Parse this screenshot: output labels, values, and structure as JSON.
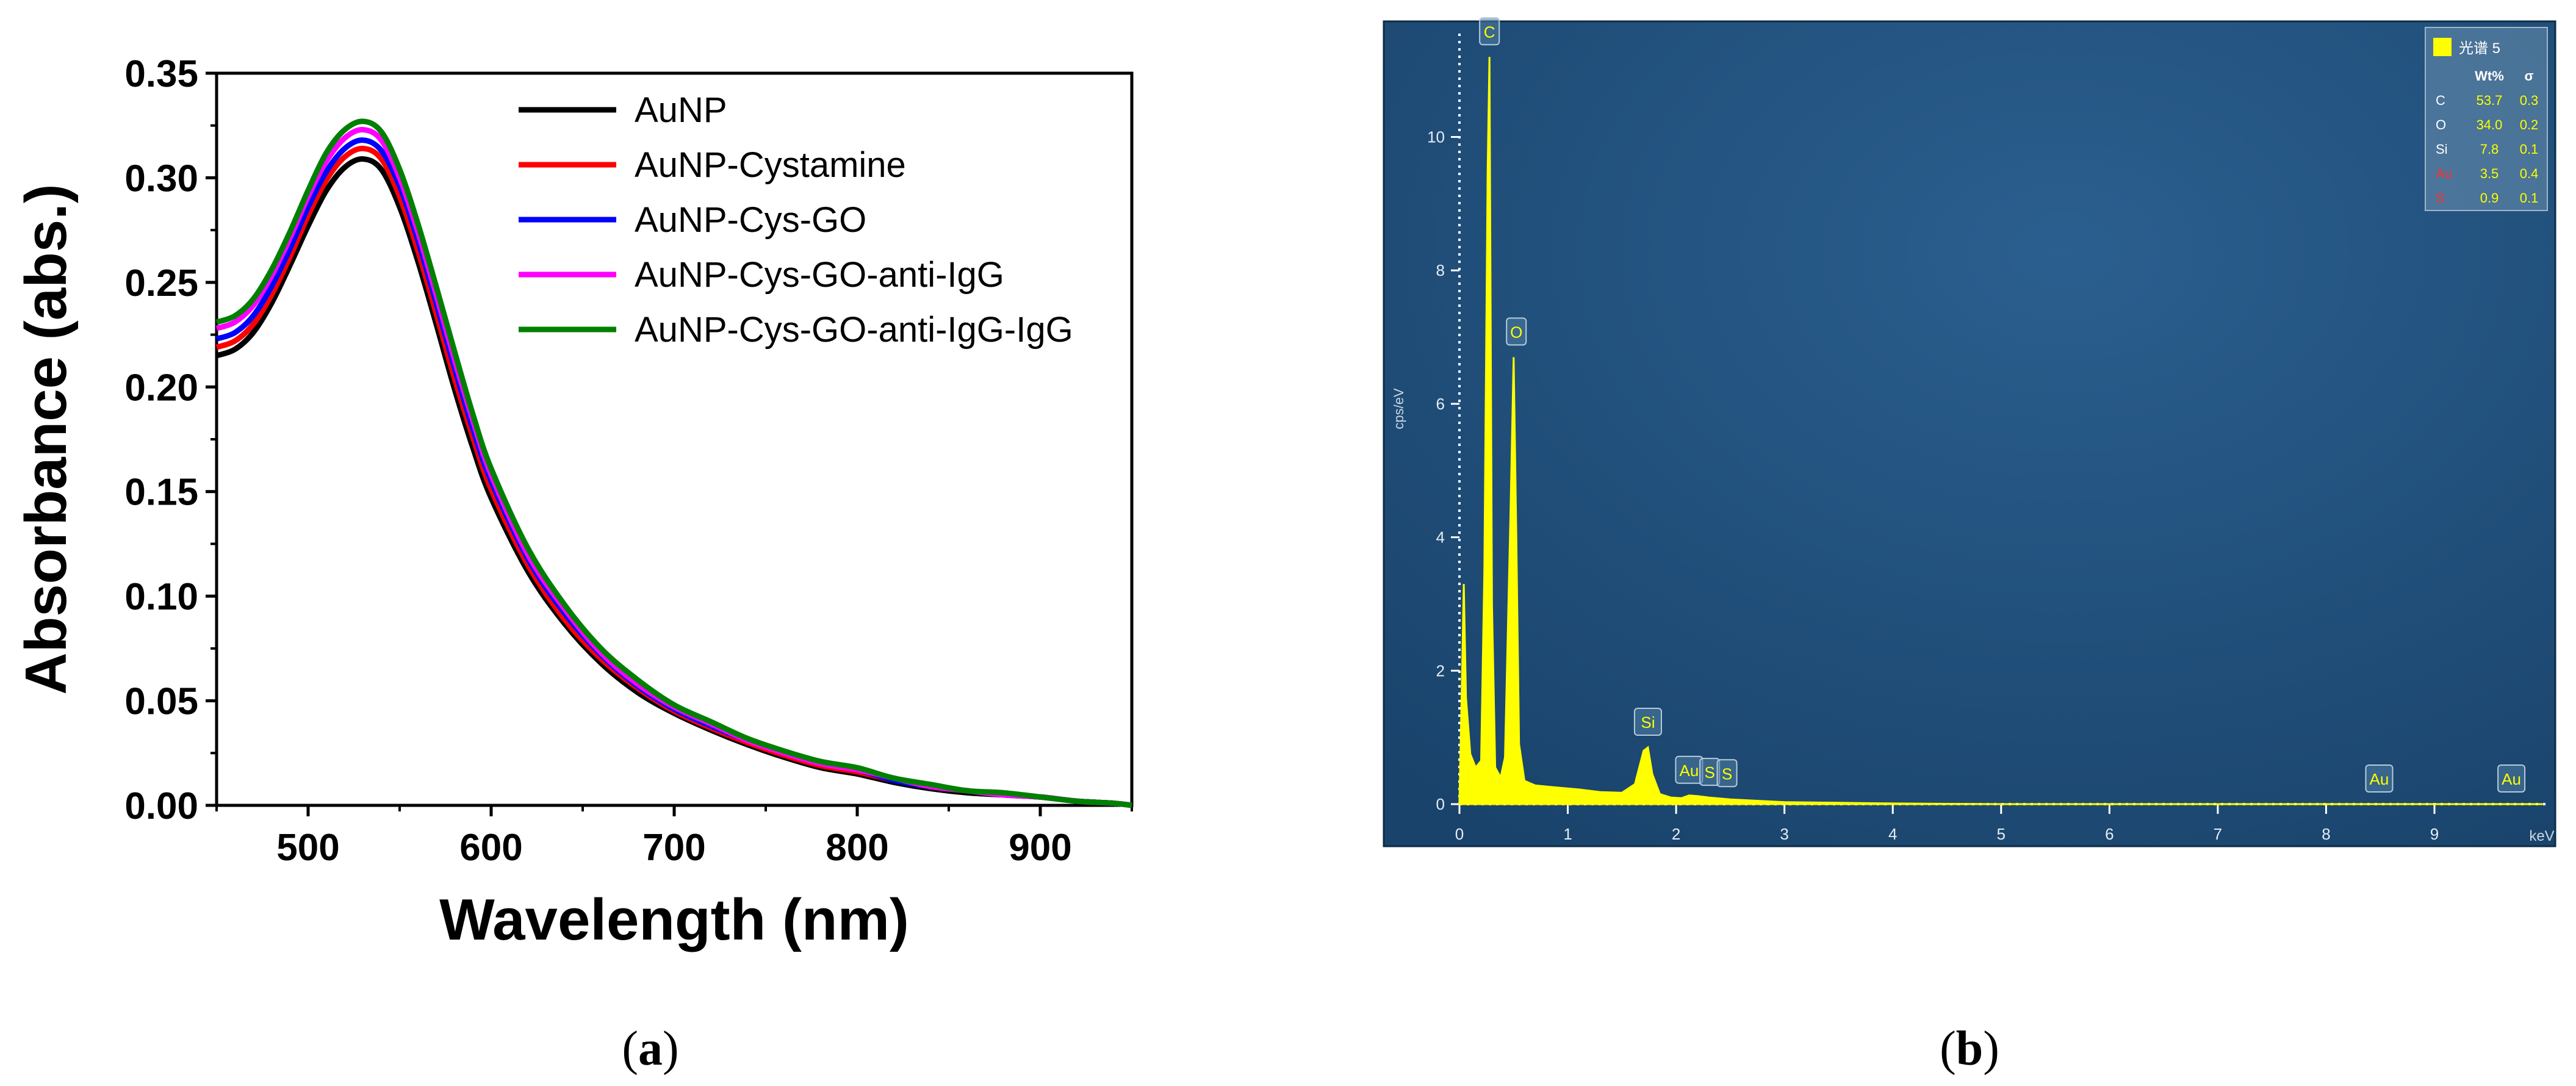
{
  "panels": [
    {
      "label": "(a)",
      "label_letter": "a"
    },
    {
      "label": "(b)",
      "label_letter": "b"
    }
  ],
  "chart_data": [
    {
      "type": "line",
      "title": "",
      "xlabel": "Wavelength (nm)",
      "ylabel": "Absorbance (abs.)",
      "xlim": [
        450,
        950
      ],
      "ylim": [
        0,
        0.35
      ],
      "xticks": [
        "500",
        "600",
        "700",
        "800",
        "900"
      ],
      "yticks": [
        "0.00",
        "0.05",
        "0.10",
        "0.15",
        "0.20",
        "0.25",
        "0.30",
        "0.35"
      ],
      "legend_position": "top-right",
      "grid": false,
      "x": [
        450,
        460,
        470,
        480,
        490,
        500,
        510,
        520,
        530,
        540,
        550,
        560,
        570,
        580,
        590,
        600,
        620,
        640,
        660,
        680,
        700,
        720,
        740,
        760,
        780,
        800,
        820,
        840,
        860,
        880,
        900,
        920,
        940,
        950
      ],
      "series": [
        {
          "name": "AuNP",
          "color": "#000000",
          "values": [
            0.215,
            0.218,
            0.226,
            0.24,
            0.258,
            0.277,
            0.294,
            0.305,
            0.309,
            0.304,
            0.286,
            0.26,
            0.23,
            0.199,
            0.171,
            0.147,
            0.112,
            0.087,
            0.068,
            0.054,
            0.044,
            0.036,
            0.029,
            0.023,
            0.018,
            0.015,
            0.011,
            0.008,
            0.006,
            0.005,
            0.004,
            0.002,
            0.001,
            0.0
          ]
        },
        {
          "name": "AuNP-Cystamine",
          "color": "#ff0000",
          "values": [
            0.219,
            0.222,
            0.23,
            0.244,
            0.262,
            0.282,
            0.299,
            0.31,
            0.314,
            0.309,
            0.291,
            0.265,
            0.235,
            0.204,
            0.176,
            0.151,
            0.115,
            0.089,
            0.07,
            0.056,
            0.045,
            0.037,
            0.03,
            0.024,
            0.019,
            0.016,
            0.012,
            0.009,
            0.007,
            0.005,
            0.004,
            0.002,
            0.001,
            0.0
          ]
        },
        {
          "name": "AuNP-Cys-GO",
          "color": "#0000ff",
          "values": [
            0.223,
            0.226,
            0.234,
            0.248,
            0.266,
            0.286,
            0.303,
            0.314,
            0.318,
            0.313,
            0.296,
            0.27,
            0.24,
            0.209,
            0.18,
            0.155,
            0.118,
            0.092,
            0.072,
            0.057,
            0.046,
            0.038,
            0.031,
            0.025,
            0.02,
            0.017,
            0.012,
            0.009,
            0.007,
            0.005,
            0.004,
            0.002,
            0.001,
            0.0
          ]
        },
        {
          "name": "AuNP-Cys-GO-anti-IgG",
          "color": "#ff00ff",
          "values": [
            0.228,
            0.231,
            0.239,
            0.253,
            0.271,
            0.291,
            0.308,
            0.319,
            0.323,
            0.318,
            0.3,
            0.274,
            0.244,
            0.213,
            0.184,
            0.158,
            0.12,
            0.094,
            0.073,
            0.058,
            0.047,
            0.039,
            0.031,
            0.025,
            0.02,
            0.017,
            0.013,
            0.009,
            0.007,
            0.005,
            0.004,
            0.002,
            0.001,
            0.0
          ]
        },
        {
          "name": "AuNP-Cys-GO-anti-IgG-IgG",
          "color": "#008000",
          "values": [
            0.231,
            0.234,
            0.242,
            0.256,
            0.274,
            0.294,
            0.312,
            0.323,
            0.327,
            0.322,
            0.304,
            0.278,
            0.248,
            0.217,
            0.187,
            0.161,
            0.123,
            0.096,
            0.075,
            0.06,
            0.048,
            0.04,
            0.032,
            0.026,
            0.021,
            0.018,
            0.013,
            0.01,
            0.007,
            0.006,
            0.004,
            0.002,
            0.001,
            0.0
          ]
        }
      ]
    },
    {
      "type": "area",
      "title": "",
      "xlabel": "keV",
      "ylabel": "cps/eV",
      "xlim": [
        0,
        10
      ],
      "ylim": [
        0,
        12
      ],
      "xticks": [
        "0",
        "1",
        "2",
        "3",
        "4",
        "5",
        "6",
        "7",
        "8",
        "9"
      ],
      "yticks": [
        "0",
        "2",
        "4",
        "6",
        "8",
        "10"
      ],
      "grid": false,
      "colors": {
        "background": "#1d4a73",
        "spectrum": "#ffff00",
        "label_box": "#4e7ea3"
      },
      "x": [
        0.0,
        0.02,
        0.04,
        0.06,
        0.1,
        0.15,
        0.2,
        0.23,
        0.26,
        0.277,
        0.3,
        0.33,
        0.38,
        0.42,
        0.47,
        0.5,
        0.525,
        0.55,
        0.6,
        0.7,
        0.9,
        1.1,
        1.3,
        1.5,
        1.62,
        1.7,
        1.74,
        1.78,
        1.85,
        1.95,
        2.05,
        2.12,
        2.2,
        2.3,
        2.5,
        3.0,
        3.5,
        4.0,
        5.0,
        6.0,
        7.0,
        8.0,
        8.5,
        9.0,
        9.7,
        10.0
      ],
      "values": [
        0.05,
        1.6,
        3.3,
        1.6,
        0.75,
        0.55,
        0.65,
        3.5,
        9.5,
        11.2,
        3.0,
        0.55,
        0.4,
        0.7,
        4.3,
        6.7,
        4.0,
        0.9,
        0.35,
        0.28,
        0.25,
        0.22,
        0.18,
        0.17,
        0.3,
        0.8,
        0.85,
        0.45,
        0.15,
        0.1,
        0.09,
        0.13,
        0.12,
        0.1,
        0.07,
        0.03,
        0.02,
        0.01,
        0.0,
        0.0,
        0.0,
        0.0,
        0.0,
        0.0,
        0.0,
        0.0
      ],
      "peak_labels": [
        {
          "label": "C",
          "x": 0.277,
          "y": 11.2
        },
        {
          "label": "O",
          "x": 0.525,
          "y": 6.7
        },
        {
          "label": "Si",
          "x": 1.74,
          "y": 0.85
        },
        {
          "label": "Au",
          "x": 2.12,
          "y": 0.13
        },
        {
          "label": "S",
          "x": 2.31,
          "y": 0.1
        },
        {
          "label": "S",
          "x": 2.47,
          "y": 0.08
        },
        {
          "label": "Au",
          "x": 8.49,
          "y": 0.0
        },
        {
          "label": "Au",
          "x": 9.71,
          "y": 0.0
        }
      ],
      "table": {
        "legend_label": "光谱 5",
        "headers": [
          "",
          "Wt%",
          "σ"
        ],
        "rows": [
          {
            "element": "C",
            "wt": "53.7",
            "sigma": "0.3",
            "color": "#ffffff"
          },
          {
            "element": "O",
            "wt": "34.0",
            "sigma": "0.2",
            "color": "#ffffff"
          },
          {
            "element": "Si",
            "wt": "7.8",
            "sigma": "0.1",
            "color": "#ffffff"
          },
          {
            "element": "Au",
            "wt": "3.5",
            "sigma": "0.4",
            "color": "#ff3030"
          },
          {
            "element": "S",
            "wt": "0.9",
            "sigma": "0.1",
            "color": "#ff3030"
          }
        ]
      }
    }
  ]
}
